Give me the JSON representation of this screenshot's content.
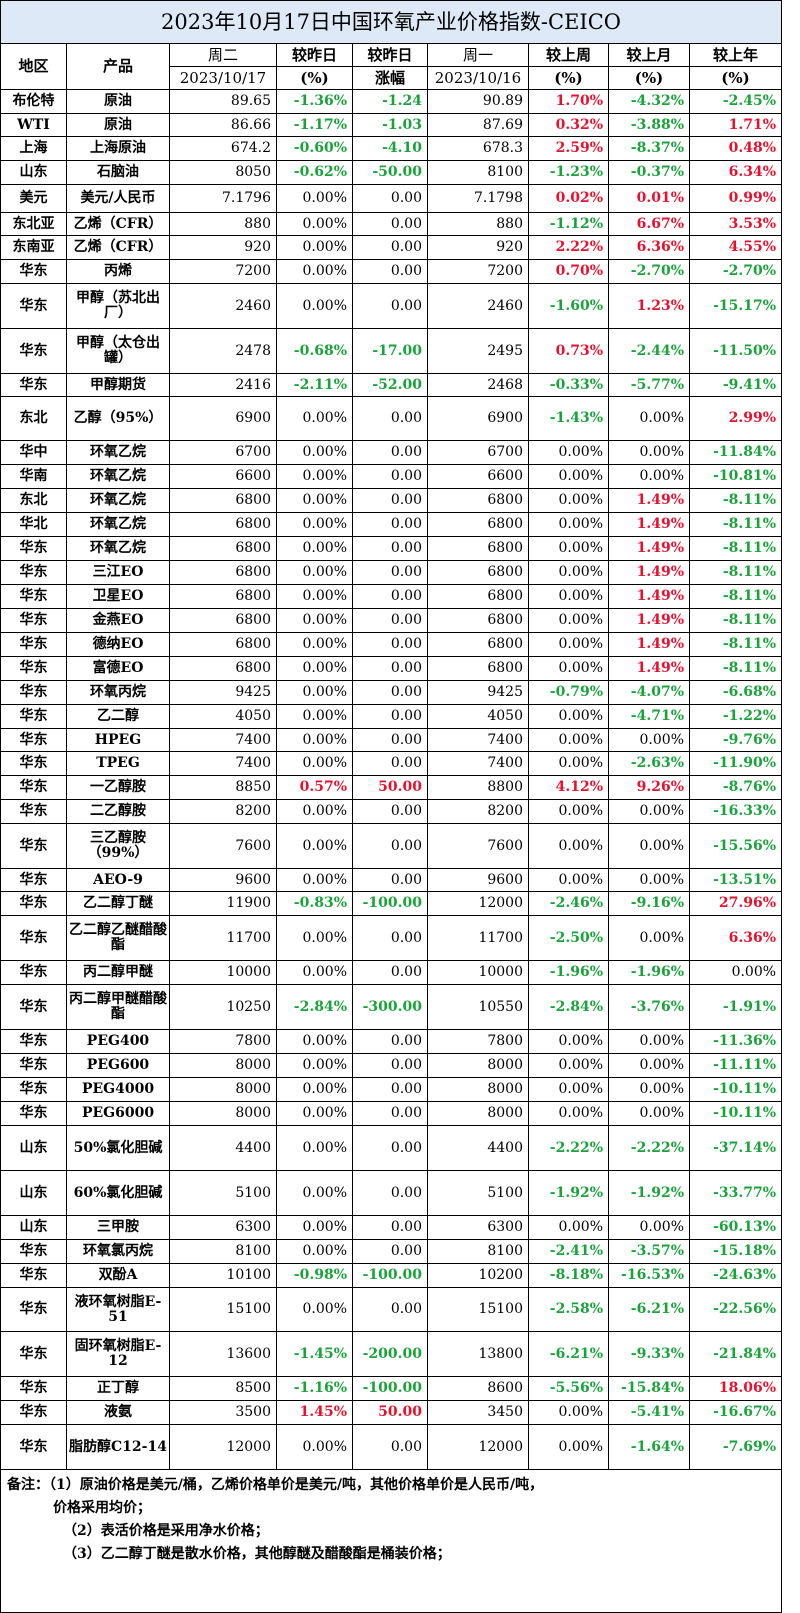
{
  "title": "2023年10月17日中国环氧产业价格指数-CEICO",
  "headers": {
    "region": "地区",
    "product": "产品",
    "tue": "周二",
    "tue_date": "2023/10/17",
    "chg_pct_top": "较昨日",
    "chg_pct_bottom": "(%)",
    "chg_amt_top": "较昨日",
    "chg_amt_bottom": "涨幅",
    "mon": "周一",
    "mon_date": "2023/10/16",
    "wk_top": "较上周",
    "wk_bottom": "(%)",
    "mo_top": "较上月",
    "mo_bottom": "(%)",
    "yr_top": "较上年",
    "yr_bottom": "(%)"
  },
  "rows": [
    {
      "region": "布伦特",
      "product": "原油",
      "tue": "89.65",
      "dpct": "-1.36%",
      "damt": "-1.24",
      "mon": "90.89",
      "wk": "1.70%",
      "mo": "-4.32%",
      "yr": "-2.45%",
      "h": 24
    },
    {
      "region": "WTI",
      "product": "原油",
      "tue": "86.66",
      "dpct": "-1.17%",
      "damt": "-1.03",
      "mon": "87.69",
      "wk": "0.32%",
      "mo": "-3.88%",
      "yr": "1.71%",
      "h": 23
    },
    {
      "region": "上海",
      "product": "上海原油",
      "tue": "674.2",
      "dpct": "-0.60%",
      "damt": "-4.10",
      "mon": "678.3",
      "wk": "2.59%",
      "mo": "-8.37%",
      "yr": "0.48%",
      "h": 24
    },
    {
      "region": "山东",
      "product": "石脑油",
      "tue": "8050",
      "dpct": "-0.62%",
      "damt": "-50.00",
      "mon": "8100",
      "wk": "-1.23%",
      "mo": "-0.37%",
      "yr": "6.34%",
      "h": 24
    },
    {
      "region": "美元",
      "product": "美元/人民币",
      "tue": "7.1796",
      "dpct": "0.00%",
      "damt": "0.00",
      "mon": "7.1798",
      "wk": "0.02%",
      "mo": "0.01%",
      "yr": "0.99%",
      "h": 28
    },
    {
      "region": "东北亚",
      "product": "乙烯（CFR）",
      "tue": "880",
      "dpct": "0.00%",
      "damt": "0.00",
      "mon": "880",
      "wk": "-1.12%",
      "mo": "6.67%",
      "yr": "3.53%",
      "h": 23
    },
    {
      "region": "东南亚",
      "product": "乙烯（CFR）",
      "tue": "920",
      "dpct": "0.00%",
      "damt": "0.00",
      "mon": "920",
      "wk": "2.22%",
      "mo": "6.36%",
      "yr": "4.55%",
      "h": 24
    },
    {
      "region": "华东",
      "product": "丙烯",
      "tue": "7200",
      "dpct": "0.00%",
      "damt": "0.00",
      "mon": "7200",
      "wk": "0.70%",
      "mo": "-2.70%",
      "yr": "-2.70%",
      "h": 24
    },
    {
      "region": "华东",
      "product": "甲醇（苏北出厂）",
      "tue": "2460",
      "dpct": "0.00%",
      "damt": "0.00",
      "mon": "2460",
      "wk": "-1.60%",
      "mo": "1.23%",
      "yr": "-15.17%",
      "h": 45,
      "wrap": true
    },
    {
      "region": "华东",
      "product": "甲醇（太仓出罐）",
      "tue": "2478",
      "dpct": "-0.68%",
      "damt": "-17.00",
      "mon": "2495",
      "wk": "0.73%",
      "mo": "-2.44%",
      "yr": "-11.50%",
      "h": 45,
      "wrap": true
    },
    {
      "region": "华东",
      "product": "甲醇期货",
      "tue": "2416",
      "dpct": "-2.11%",
      "damt": "-52.00",
      "mon": "2468",
      "wk": "-0.33%",
      "mo": "-5.77%",
      "yr": "-9.41%",
      "h": 23
    },
    {
      "region": "东北",
      "product": "乙醇（95%）",
      "tue": "6900",
      "dpct": "0.00%",
      "damt": "0.00",
      "mon": "6900",
      "wk": "-1.43%",
      "mo": "0.00%",
      "yr": "2.99%",
      "h": 44,
      "wrap": true
    },
    {
      "region": "华中",
      "product": "环氧乙烷",
      "tue": "6700",
      "dpct": "0.00%",
      "damt": "0.00",
      "mon": "6700",
      "wk": "0.00%",
      "mo": "0.00%",
      "yr": "-11.84%",
      "h": 24
    },
    {
      "region": "华南",
      "product": "环氧乙烷",
      "tue": "6600",
      "dpct": "0.00%",
      "damt": "0.00",
      "mon": "6600",
      "wk": "0.00%",
      "mo": "0.00%",
      "yr": "-10.81%",
      "h": 24
    },
    {
      "region": "东北",
      "product": "环氧乙烷",
      "tue": "6800",
      "dpct": "0.00%",
      "damt": "0.00",
      "mon": "6800",
      "wk": "0.00%",
      "mo": "1.49%",
      "yr": "-8.11%",
      "h": 24
    },
    {
      "region": "华北",
      "product": "环氧乙烷",
      "tue": "6800",
      "dpct": "0.00%",
      "damt": "0.00",
      "mon": "6800",
      "wk": "0.00%",
      "mo": "1.49%",
      "yr": "-8.11%",
      "h": 24
    },
    {
      "region": "华东",
      "product": "环氧乙烷",
      "tue": "6800",
      "dpct": "0.00%",
      "damt": "0.00",
      "mon": "6800",
      "wk": "0.00%",
      "mo": "1.49%",
      "yr": "-8.11%",
      "h": 24
    },
    {
      "region": "华东",
      "product": "三江EO",
      "tue": "6800",
      "dpct": "0.00%",
      "damt": "0.00",
      "mon": "6800",
      "wk": "0.00%",
      "mo": "1.49%",
      "yr": "-8.11%",
      "h": 24
    },
    {
      "region": "华东",
      "product": "卫星EO",
      "tue": "6800",
      "dpct": "0.00%",
      "damt": "0.00",
      "mon": "6800",
      "wk": "0.00%",
      "mo": "1.49%",
      "yr": "-8.11%",
      "h": 24
    },
    {
      "region": "华东",
      "product": "金燕EO",
      "tue": "6800",
      "dpct": "0.00%",
      "damt": "0.00",
      "mon": "6800",
      "wk": "0.00%",
      "mo": "1.49%",
      "yr": "-8.11%",
      "h": 24
    },
    {
      "region": "华东",
      "product": "德纳EO",
      "tue": "6800",
      "dpct": "0.00%",
      "damt": "0.00",
      "mon": "6800",
      "wk": "0.00%",
      "mo": "1.49%",
      "yr": "-8.11%",
      "h": 24
    },
    {
      "region": "华东",
      "product": "富德EO",
      "tue": "6800",
      "dpct": "0.00%",
      "damt": "0.00",
      "mon": "6800",
      "wk": "0.00%",
      "mo": "1.49%",
      "yr": "-8.11%",
      "h": 24
    },
    {
      "region": "华东",
      "product": "环氧丙烷",
      "tue": "9425",
      "dpct": "0.00%",
      "damt": "0.00",
      "mon": "9425",
      "wk": "-0.79%",
      "mo": "-4.07%",
      "yr": "-6.68%",
      "h": 24
    },
    {
      "region": "华东",
      "product": "乙二醇",
      "tue": "4050",
      "dpct": "0.00%",
      "damt": "0.00",
      "mon": "4050",
      "wk": "0.00%",
      "mo": "-4.71%",
      "yr": "-1.22%",
      "h": 24
    },
    {
      "region": "华东",
      "product": "HPEG",
      "tue": "7400",
      "dpct": "0.00%",
      "damt": "0.00",
      "mon": "7400",
      "wk": "0.00%",
      "mo": "0.00%",
      "yr": "-9.76%",
      "h": 23
    },
    {
      "region": "华东",
      "product": "TPEG",
      "tue": "7400",
      "dpct": "0.00%",
      "damt": "0.00",
      "mon": "7400",
      "wk": "0.00%",
      "mo": "-2.63%",
      "yr": "-11.90%",
      "h": 24
    },
    {
      "region": "华东",
      "product": "一乙醇胺",
      "tue": "8850",
      "dpct": "0.57%",
      "damt": "50.00",
      "mon": "8800",
      "wk": "4.12%",
      "mo": "9.26%",
      "yr": "-8.76%",
      "h": 24
    },
    {
      "region": "华东",
      "product": "二乙醇胺",
      "tue": "8200",
      "dpct": "0.00%",
      "damt": "0.00",
      "mon": "8200",
      "wk": "0.00%",
      "mo": "0.00%",
      "yr": "-16.33%",
      "h": 24
    },
    {
      "region": "华东",
      "product": "三乙醇胺（99%）",
      "tue": "7600",
      "dpct": "0.00%",
      "damt": "0.00",
      "mon": "7600",
      "wk": "0.00%",
      "mo": "0.00%",
      "yr": "-15.56%",
      "h": 45,
      "wrap": true
    },
    {
      "region": "华东",
      "product": "AEO-9",
      "tue": "9600",
      "dpct": "0.00%",
      "damt": "0.00",
      "mon": "9600",
      "wk": "0.00%",
      "mo": "0.00%",
      "yr": "-13.51%",
      "h": 23
    },
    {
      "region": "华东",
      "product": "乙二醇丁醚",
      "tue": "11900",
      "dpct": "-0.83%",
      "damt": "-100.00",
      "mon": "12000",
      "wk": "-2.46%",
      "mo": "-9.16%",
      "yr": "27.96%",
      "h": 24
    },
    {
      "region": "华东",
      "product": "乙二醇乙醚醋酸酯",
      "tue": "11700",
      "dpct": "0.00%",
      "damt": "0.00",
      "mon": "11700",
      "wk": "-2.50%",
      "mo": "0.00%",
      "yr": "6.36%",
      "h": 45,
      "wrap": true
    },
    {
      "region": "华东",
      "product": "丙二醇甲醚",
      "tue": "10000",
      "dpct": "0.00%",
      "damt": "0.00",
      "mon": "10000",
      "wk": "-1.96%",
      "mo": "-1.96%",
      "yr": "0.00%",
      "h": 24
    },
    {
      "region": "华东",
      "product": "丙二醇甲醚醋酸酯",
      "tue": "10250",
      "dpct": "-2.84%",
      "damt": "-300.00",
      "mon": "10550",
      "wk": "-2.84%",
      "mo": "-3.76%",
      "yr": "-1.91%",
      "h": 45,
      "wrap": true
    },
    {
      "region": "华东",
      "product": "PEG400",
      "tue": "7800",
      "dpct": "0.00%",
      "damt": "0.00",
      "mon": "7800",
      "wk": "0.00%",
      "mo": "0.00%",
      "yr": "-11.36%",
      "h": 24
    },
    {
      "region": "华东",
      "product": "PEG600",
      "tue": "8000",
      "dpct": "0.00%",
      "damt": "0.00",
      "mon": "8000",
      "wk": "0.00%",
      "mo": "0.00%",
      "yr": "-11.11%",
      "h": 24
    },
    {
      "region": "华东",
      "product": "PEG4000",
      "tue": "8000",
      "dpct": "0.00%",
      "damt": "0.00",
      "mon": "8000",
      "wk": "0.00%",
      "mo": "0.00%",
      "yr": "-10.11%",
      "h": 24
    },
    {
      "region": "华东",
      "product": "PEG6000",
      "tue": "8000",
      "dpct": "0.00%",
      "damt": "0.00",
      "mon": "8000",
      "wk": "0.00%",
      "mo": "0.00%",
      "yr": "-10.11%",
      "h": 24
    },
    {
      "region": "山东",
      "product": "50%氯化胆碱",
      "tue": "4400",
      "dpct": "0.00%",
      "damt": "0.00",
      "mon": "4400",
      "wk": "-2.22%",
      "mo": "-2.22%",
      "yr": "-37.14%",
      "h": 45,
      "wrap": true
    },
    {
      "region": "山东",
      "product": "60%氯化胆碱",
      "tue": "5100",
      "dpct": "0.00%",
      "damt": "0.00",
      "mon": "5100",
      "wk": "-1.92%",
      "mo": "-1.92%",
      "yr": "-33.77%",
      "h": 45,
      "wrap": true
    },
    {
      "region": "山东",
      "product": "三甲胺",
      "tue": "6300",
      "dpct": "0.00%",
      "damt": "0.00",
      "mon": "6300",
      "wk": "0.00%",
      "mo": "0.00%",
      "yr": "-60.13%",
      "h": 24
    },
    {
      "region": "华东",
      "product": "环氧氯丙烷",
      "tue": "8100",
      "dpct": "0.00%",
      "damt": "0.00",
      "mon": "8100",
      "wk": "-2.41%",
      "mo": "-3.57%",
      "yr": "-15.18%",
      "h": 24
    },
    {
      "region": "华东",
      "product": "双酚A",
      "tue": "10100",
      "dpct": "-0.98%",
      "damt": "-100.00",
      "mon": "10200",
      "wk": "-8.18%",
      "mo": "-16.53%",
      "yr": "-24.63%",
      "h": 24
    },
    {
      "region": "华东",
      "product": "液环氧树脂E-51",
      "tue": "15100",
      "dpct": "0.00%",
      "damt": "0.00",
      "mon": "15100",
      "wk": "-2.58%",
      "mo": "-6.21%",
      "yr": "-22.56%",
      "h": 44,
      "wrap": true
    },
    {
      "region": "华东",
      "product": "固环氧树脂E-12",
      "tue": "13600",
      "dpct": "-1.45%",
      "damt": "-200.00",
      "mon": "13800",
      "wk": "-6.21%",
      "mo": "-9.33%",
      "yr": "-21.84%",
      "h": 45,
      "wrap": true
    },
    {
      "region": "华东",
      "product": "正丁醇",
      "tue": "8500",
      "dpct": "-1.16%",
      "damt": "-100.00",
      "mon": "8600",
      "wk": "-5.56%",
      "mo": "-15.84%",
      "yr": "18.06%",
      "h": 24
    },
    {
      "region": "华东",
      "product": "液氨",
      "tue": "3500",
      "dpct": "1.45%",
      "damt": "50.00",
      "mon": "3450",
      "wk": "0.00%",
      "mo": "-5.41%",
      "yr": "-16.67%",
      "h": 24
    },
    {
      "region": "华东",
      "product": "脂肪醇C12-14",
      "tue": "12000",
      "dpct": "0.00%",
      "damt": "0.00",
      "mon": "12000",
      "wk": "0.00%",
      "mo": "-1.64%",
      "yr": "-7.69%",
      "h": 45,
      "wrap": true
    }
  ],
  "notes": {
    "line1": "备注：（1）原油价格是美元/桶，乙烯价格单价是美元/吨，其他价格单价是人民币/吨，",
    "line1b": "价格采用均价；",
    "line2": "（2）表活价格是采用净水价格；",
    "line3": "（3）乙二醇丁醚是散水价格，其他醇醚及醋酸酯是桶装价格；"
  },
  "colors": {
    "up": "#e8112d",
    "down": "#1aa33a",
    "title_bg": "#dde9f7"
  }
}
